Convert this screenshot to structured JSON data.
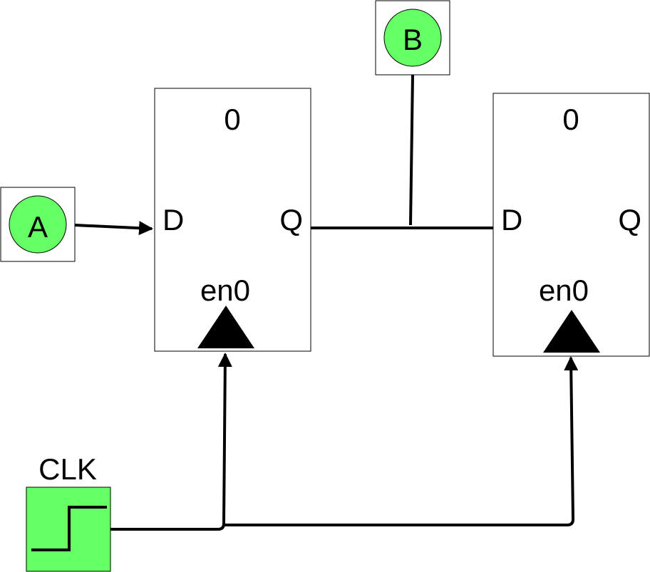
{
  "inputs": {
    "a": {
      "label": "A"
    },
    "b": {
      "label": "B"
    }
  },
  "clock": {
    "label": "CLK"
  },
  "flipflops": [
    {
      "init": "0",
      "d_label": "D",
      "q_label": "Q",
      "en_label": "en0"
    },
    {
      "init": "0",
      "d_label": "D",
      "q_label": "Q",
      "en_label": "en0"
    }
  ],
  "colors": {
    "node_fill": "#66ff66",
    "wire": "#000000",
    "box_stroke": "#000000"
  }
}
